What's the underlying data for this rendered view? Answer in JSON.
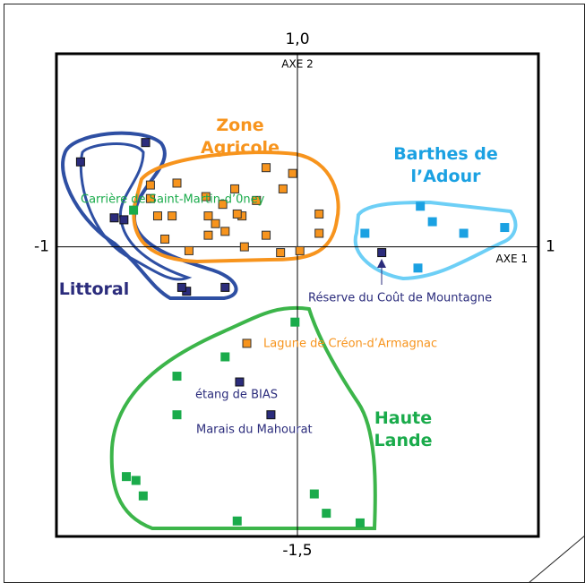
{
  "chart_data": {
    "type": "scatter",
    "xlim": [
      -1,
      1
    ],
    "ylim": [
      -1.5,
      1.0
    ],
    "xticks": [
      -1,
      1
    ],
    "yticks": [
      {
        "value": -1.5,
        "label": "-1,5"
      },
      {
        "value": 1.0,
        "label": "1,0"
      }
    ],
    "xlabel": "AXE 1",
    "ylabel": "AXE 2",
    "series": [
      {
        "name": "Littoral",
        "color": "#2b2c7c",
        "x": [
          -0.9,
          -0.63,
          -0.76,
          -0.72,
          -0.46,
          -0.48,
          -0.3,
          0.35,
          -0.24,
          -0.11
        ],
        "values": [
          0.44,
          0.54,
          0.15,
          0.14,
          -0.23,
          -0.21,
          -0.21,
          -0.03,
          -0.7,
          -0.87
        ]
      },
      {
        "name": "Zone Agricole",
        "color": "#f7941d",
        "x": [
          -0.61,
          -0.5,
          -0.13,
          -0.02,
          -0.61,
          -0.58,
          -0.52,
          -0.38,
          -0.37,
          -0.31,
          -0.26,
          -0.23,
          -0.17,
          -0.06,
          0.09,
          -0.55,
          -0.45,
          -0.37,
          -0.34,
          -0.3,
          -0.25,
          -0.13,
          -0.22,
          -0.07,
          0.01,
          0.09,
          -0.21
        ],
        "values": [
          0.32,
          0.33,
          0.41,
          0.38,
          0.25,
          0.16,
          0.16,
          0.26,
          0.16,
          0.22,
          0.3,
          0.16,
          0.24,
          0.3,
          0.17,
          0.04,
          -0.02,
          0.06,
          0.12,
          0.08,
          0.17,
          0.06,
          0.0,
          -0.03,
          -0.02,
          0.07,
          -0.5
        ]
      },
      {
        "name": "Barthes de l’Adour",
        "color": "#1ba1e2",
        "x": [
          0.51,
          0.56,
          0.69,
          0.86,
          0.28,
          0.5
        ],
        "values": [
          0.21,
          0.13,
          0.07,
          0.1,
          0.07,
          -0.11
        ]
      },
      {
        "name": "Haute Lande",
        "color": "#1aab4b",
        "x": [
          -0.68,
          -0.01,
          -0.5,
          -0.3,
          -0.5,
          -0.71,
          -0.67,
          -0.64,
          -0.25,
          0.07,
          0.12,
          0.26
        ],
        "values": [
          0.19,
          -0.39,
          -0.67,
          -0.57,
          -0.87,
          -1.19,
          -1.21,
          -1.29,
          -1.42,
          -1.28,
          -1.38,
          -1.43
        ]
      }
    ],
    "annotations": [
      {
        "text": "Carrière de Saint-Martin-d’0ney",
        "color": "#1aab4b"
      },
      {
        "text": "Réserve du Coût de Mountagne",
        "color": "#2b2c7c"
      },
      {
        "text": "Lagune de Créon-d’Armagnac",
        "color": "#f7941d"
      },
      {
        "text": "étang de BIAS",
        "color": "#2b2c7c"
      },
      {
        "text": "Marais du Mahourat",
        "color": "#2b2c7c"
      }
    ]
  }
}
